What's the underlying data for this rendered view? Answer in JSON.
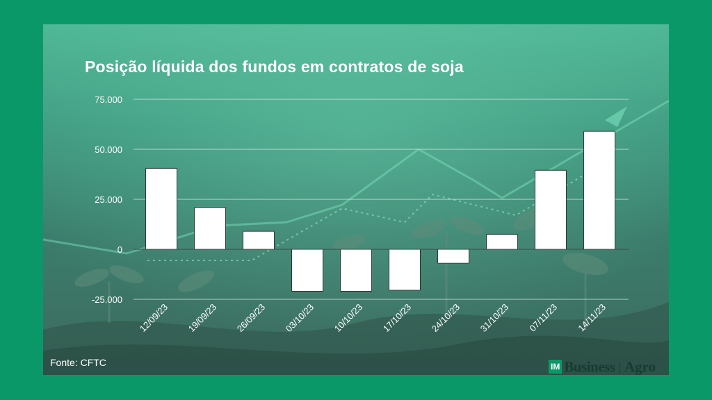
{
  "chart_data": {
    "type": "bar",
    "title": "Posição líquida dos fundos em contratos de soja",
    "categories": [
      "12/09/23",
      "19/09/23",
      "26/09/23",
      "03/10/23",
      "10/10/23",
      "17/10/23",
      "24/10/23",
      "31/10/23",
      "07/11/23",
      "14/11/23"
    ],
    "values": [
      40500,
      21000,
      9000,
      -21000,
      -21000,
      -20500,
      -7000,
      7500,
      39500,
      59000
    ],
    "yticks": [
      "75.000",
      "50.000",
      "25.000",
      "0",
      "-25.000"
    ],
    "ytick_values": [
      75000,
      50000,
      25000,
      0,
      -25000
    ],
    "ylim": [
      -25000,
      75000
    ],
    "grid": true,
    "bar_color": "#ffffff"
  },
  "footer": {
    "source": "Fonte: CFTC"
  },
  "logo": {
    "badge": "IM",
    "brand": "Business",
    "separator": "|",
    "section": "Agro"
  }
}
